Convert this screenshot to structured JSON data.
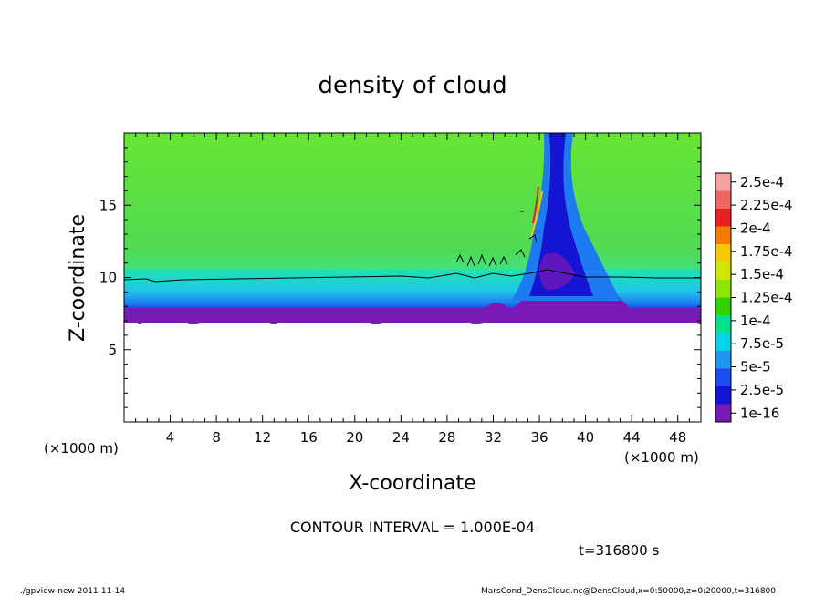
{
  "chart_data": {
    "type": "heatmap",
    "title": "density of cloud",
    "xlabel": "X-coordinate",
    "ylabel": "Z-coordinate",
    "x_unit_left": "(×1000 m)",
    "x_unit_right": "(×1000 m)",
    "xlim": [
      0,
      50
    ],
    "ylim": [
      0,
      20
    ],
    "x_ticks": [
      4,
      8,
      12,
      16,
      20,
      24,
      28,
      32,
      36,
      40,
      44,
      48
    ],
    "y_ticks": [
      5,
      10,
      15
    ],
    "colorbar": {
      "labels": [
        "2.5e-4",
        "2.25e-4",
        "2e-4",
        "1.75e-4",
        "1.5e-4",
        "1.25e-4",
        "1e-4",
        "7.5e-5",
        "5e-5",
        "2.5e-5",
        "1e-16"
      ],
      "colors": [
        "#f7a0a0",
        "#f06565",
        "#e82020",
        "#f57a00",
        "#f5c800",
        "#d2e600",
        "#8ce600",
        "#32d200",
        "#00e08c",
        "#00d4e8",
        "#1e96f0",
        "#1a4ef0",
        "#1414d2",
        "#7a1ab4"
      ],
      "levels": [
        0.00025,
        0.000225,
        0.0002,
        0.000175,
        0.00015,
        0.000125,
        0.0001,
        7.5e-05,
        5e-05,
        2.5e-05,
        1e-16
      ]
    },
    "contour_interval_text": "CONTOUR INTERVAL = 1.000E-04",
    "time_text": "t=316800 s",
    "contour_level": 0.0001,
    "field_profile": {
      "cloud_base_z_left": 7.0,
      "cloud_top_contour_z": 9.8,
      "plume_x": 36.5,
      "plume_top_z": 20
    }
  },
  "footer": {
    "left": "./gpview-new   2011-11-14",
    "right": "MarsCond_DensCloud.nc@DensCloud,x=0:50000,z=0:20000,t=316800"
  }
}
